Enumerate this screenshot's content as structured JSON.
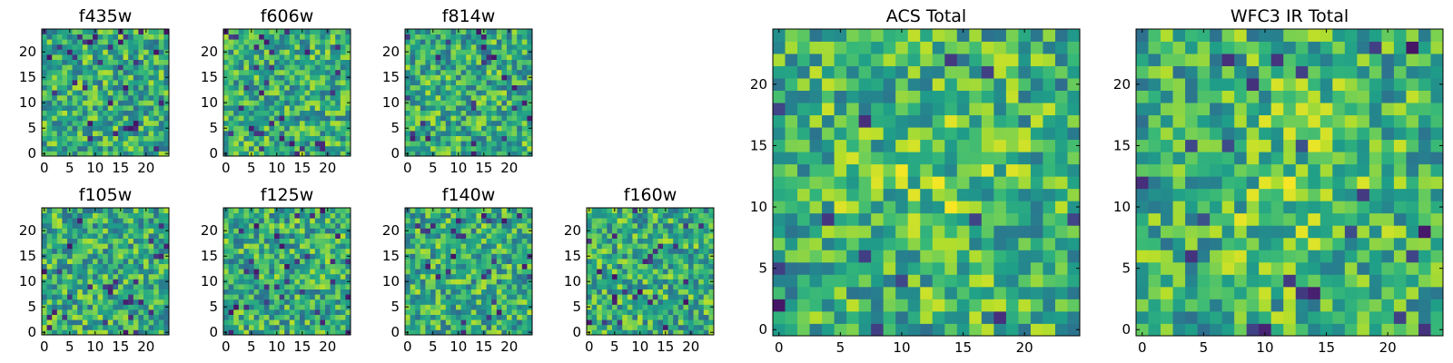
{
  "chart_data": [
    {
      "type": "heatmap",
      "title": "f435w",
      "grid_size": 25,
      "colormap": "viridis",
      "xticks": [
        0,
        5,
        10,
        15,
        20
      ],
      "yticks": [
        0,
        5,
        10,
        15,
        20
      ],
      "xlim": [
        -0.5,
        24.5
      ],
      "ylim": [
        -0.5,
        24.5
      ],
      "grid": false
    },
    {
      "type": "heatmap",
      "title": "f606w",
      "grid_size": 25,
      "colormap": "viridis",
      "xticks": [
        0,
        5,
        10,
        15,
        20
      ],
      "yticks": [
        0,
        5,
        10,
        15,
        20
      ],
      "xlim": [
        -0.5,
        24.5
      ],
      "ylim": [
        -0.5,
        24.5
      ],
      "grid": false
    },
    {
      "type": "heatmap",
      "title": "f814w",
      "grid_size": 25,
      "colormap": "viridis",
      "xticks": [
        0,
        5,
        10,
        15,
        20
      ],
      "yticks": [
        0,
        5,
        10,
        15,
        20
      ],
      "xlim": [
        -0.5,
        24.5
      ],
      "ylim": [
        -0.5,
        24.5
      ],
      "grid": false
    },
    {
      "type": "heatmap",
      "title": "f105w",
      "grid_size": 25,
      "colormap": "viridis",
      "xticks": [
        0,
        5,
        10,
        15,
        20
      ],
      "yticks": [
        0,
        5,
        10,
        15,
        20
      ],
      "xlim": [
        -0.5,
        24.5
      ],
      "ylim": [
        -0.5,
        24.5
      ],
      "grid": false
    },
    {
      "type": "heatmap",
      "title": "f125w",
      "grid_size": 25,
      "colormap": "viridis",
      "xticks": [
        0,
        5,
        10,
        15,
        20
      ],
      "yticks": [
        0,
        5,
        10,
        15,
        20
      ],
      "xlim": [
        -0.5,
        24.5
      ],
      "ylim": [
        -0.5,
        24.5
      ],
      "grid": false
    },
    {
      "type": "heatmap",
      "title": "f140w",
      "grid_size": 25,
      "colormap": "viridis",
      "xticks": [
        0,
        5,
        10,
        15,
        20
      ],
      "yticks": [
        0,
        5,
        10,
        15,
        20
      ],
      "xlim": [
        -0.5,
        24.5
      ],
      "ylim": [
        -0.5,
        24.5
      ],
      "grid": false
    },
    {
      "type": "heatmap",
      "title": "f160w",
      "grid_size": 25,
      "colormap": "viridis",
      "xticks": [
        0,
        5,
        10,
        15,
        20
      ],
      "yticks": [
        0,
        5,
        10,
        15,
        20
      ],
      "xlim": [
        -0.5,
        24.5
      ],
      "ylim": [
        -0.5,
        24.5
      ],
      "grid": false
    },
    {
      "type": "heatmap",
      "title": "ACS Total",
      "grid_size": 25,
      "colormap": "viridis",
      "xticks": [
        0,
        5,
        10,
        15,
        20
      ],
      "yticks": [
        0,
        5,
        10,
        15,
        20
      ],
      "xlim": [
        -0.5,
        24.5
      ],
      "ylim": [
        -0.5,
        24.5
      ],
      "grid": false
    },
    {
      "type": "heatmap",
      "title": "WFC3 IR Total",
      "grid_size": 25,
      "colormap": "viridis",
      "xticks": [
        0,
        5,
        10,
        15,
        20
      ],
      "yticks": [
        0,
        5,
        10,
        15,
        20
      ],
      "xlim": [
        -0.5,
        24.5
      ],
      "ylim": [
        -0.5,
        24.5
      ],
      "grid": false
    }
  ]
}
